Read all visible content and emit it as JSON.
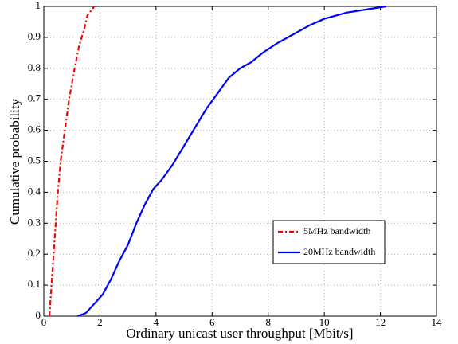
{
  "chart_data": {
    "type": "line",
    "xlabel": "Ordinary unicast user throughput [Mbit/s]",
    "ylabel": "Cumulative probability",
    "xlim": [
      0,
      14
    ],
    "xticks": [
      0,
      2,
      4,
      6,
      8,
      10,
      12,
      14
    ],
    "ylim": [
      0,
      1
    ],
    "yticks": [
      0,
      0.1,
      0.2,
      0.3,
      0.4,
      0.5,
      0.6,
      0.7,
      0.8,
      0.9,
      1
    ],
    "grid": true,
    "legend": "lower right",
    "series": [
      {
        "name": "5MHz bandwidth",
        "color": "#ff0000",
        "dash": "dashdot",
        "x": [
          0.2,
          0.35,
          0.5,
          0.6,
          0.75,
          0.9,
          1.1,
          1.25,
          1.45,
          1.55,
          1.8
        ],
        "values": [
          0,
          0.2,
          0.4,
          0.5,
          0.6,
          0.7,
          0.8,
          0.87,
          0.93,
          0.97,
          1.0
        ]
      },
      {
        "name": "20MHz bandwidth",
        "color": "#0000ff",
        "dash": "solid",
        "x": [
          1.2,
          1.5,
          1.8,
          2.1,
          2.4,
          2.7,
          3.0,
          3.3,
          3.6,
          3.9,
          4.2,
          4.6,
          5.0,
          5.4,
          5.8,
          6.2,
          6.6,
          7.0,
          7.4,
          7.8,
          8.3,
          8.9,
          9.5,
          10.0,
          10.8,
          11.5,
          12.2
        ],
        "values": [
          0,
          0.01,
          0.04,
          0.07,
          0.12,
          0.18,
          0.23,
          0.3,
          0.36,
          0.41,
          0.44,
          0.49,
          0.55,
          0.61,
          0.67,
          0.72,
          0.77,
          0.8,
          0.82,
          0.85,
          0.88,
          0.91,
          0.94,
          0.96,
          0.98,
          0.99,
          1.0
        ]
      }
    ]
  }
}
